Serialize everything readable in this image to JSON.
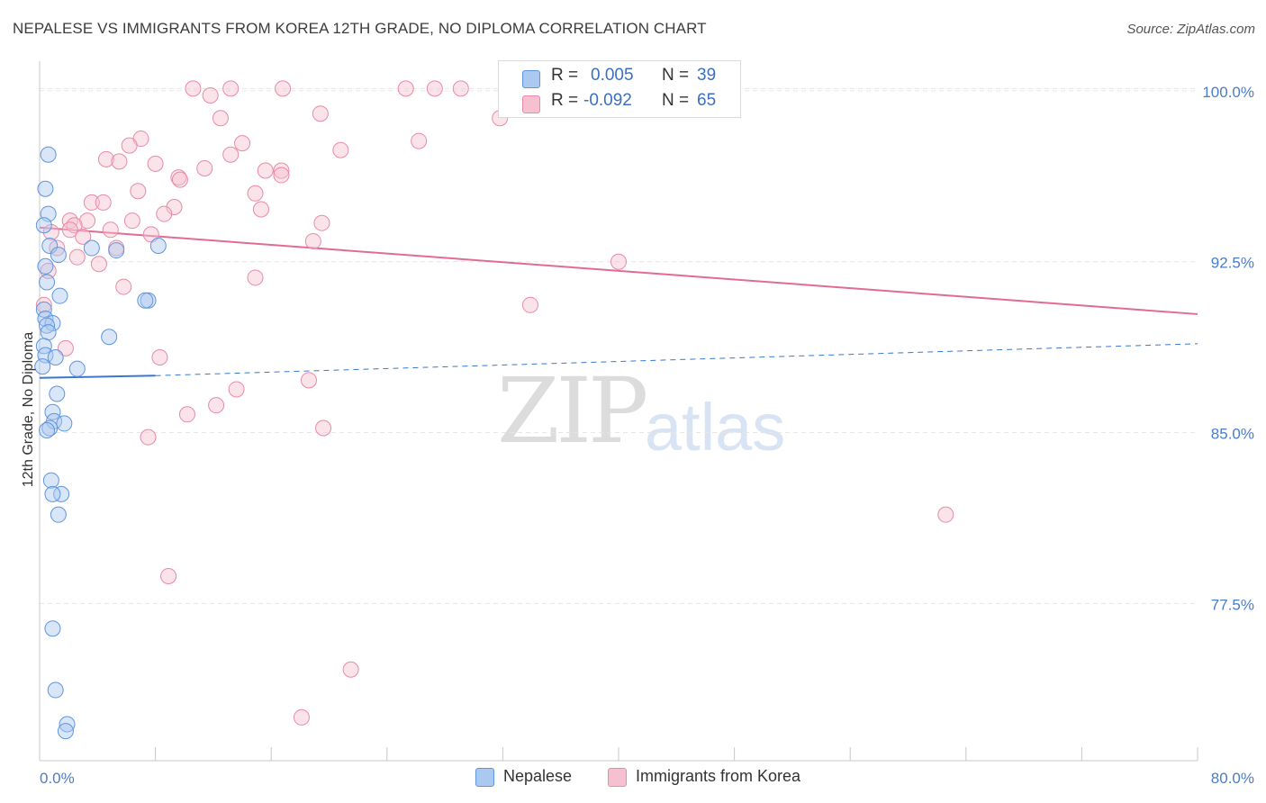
{
  "header": {
    "title": "NEPALESE VS IMMIGRANTS FROM KOREA 12TH GRADE, NO DIPLOMA CORRELATION CHART",
    "source": "Source: ZipAtlas.com"
  },
  "watermark": {
    "zip": "ZIP",
    "atlas": "atlas"
  },
  "colors": {
    "nepalese_fill": "#aac8f0",
    "nepalese_stroke": "#5f95dd",
    "nepalese_line": "#3a78d0",
    "korea_fill": "#f6c0d0",
    "korea_stroke": "#e88aa8",
    "korea_line": "#e36b93",
    "tick_text": "#4a7cc9",
    "grid": "#e6e6e6"
  },
  "legend": {
    "rows": [
      {
        "r_label": "R =",
        "r_value": "0.005",
        "n_label": "N =",
        "n_value": "39"
      },
      {
        "r_label": "R =",
        "r_value": "-0.092",
        "n_label": "N =",
        "n_value": "65"
      }
    ]
  },
  "bottom_legend": {
    "nepalese": "Nepalese",
    "korea": "Immigrants from Korea"
  },
  "chart_data": {
    "type": "scatter",
    "title": "NEPALESE VS IMMIGRANTS FROM KOREA 12TH GRADE, NO DIPLOMA CORRELATION CHART",
    "xlabel": "",
    "ylabel": "12th Grade, No Diploma",
    "xlim": [
      0,
      80
    ],
    "ylim": [
      70.6,
      101.3
    ],
    "x_tick_labels": [
      {
        "value": 0,
        "label": "0.0%"
      },
      {
        "value": 80,
        "label": "80.0%"
      }
    ],
    "x_minor_ticks": [
      0,
      8,
      16,
      24,
      32,
      40,
      48,
      56,
      64,
      72,
      80
    ],
    "y_ticks": [
      {
        "value": 100,
        "label": "100.0%"
      },
      {
        "value": 92.5,
        "label": "92.5%"
      },
      {
        "value": 85,
        "label": "85.0%"
      },
      {
        "value": 77.5,
        "label": "77.5%"
      }
    ],
    "grid": true,
    "series": [
      {
        "name": "Nepalese",
        "r": 0.005,
        "n": 39,
        "trend": {
          "solid": [
            [
              0,
              87.4
            ],
            [
              8,
              87.5
            ]
          ],
          "dashed": [
            [
              8,
              87.5
            ],
            [
              80,
              88.9
            ]
          ]
        },
        "points": [
          [
            0.6,
            97.2
          ],
          [
            0.4,
            95.7
          ],
          [
            0.6,
            94.6
          ],
          [
            0.3,
            94.1
          ],
          [
            0.7,
            93.2
          ],
          [
            1.3,
            92.8
          ],
          [
            0.4,
            92.3
          ],
          [
            0.5,
            91.6
          ],
          [
            1.4,
            91.0
          ],
          [
            7.5,
            90.8
          ],
          [
            7.3,
            90.8
          ],
          [
            0.3,
            90.4
          ],
          [
            0.4,
            90.0
          ],
          [
            0.9,
            89.8
          ],
          [
            0.5,
            89.7
          ],
          [
            0.6,
            89.4
          ],
          [
            4.8,
            89.2
          ],
          [
            0.3,
            88.8
          ],
          [
            0.4,
            88.4
          ],
          [
            1.1,
            88.3
          ],
          [
            0.2,
            87.9
          ],
          [
            2.6,
            87.8
          ],
          [
            1.2,
            86.7
          ],
          [
            0.9,
            85.9
          ],
          [
            1.0,
            85.5
          ],
          [
            1.7,
            85.4
          ],
          [
            0.7,
            85.2
          ],
          [
            0.5,
            85.1
          ],
          [
            0.8,
            82.9
          ],
          [
            1.5,
            82.3
          ],
          [
            0.9,
            82.3
          ],
          [
            1.3,
            81.4
          ],
          [
            0.9,
            76.4
          ],
          [
            1.1,
            73.7
          ],
          [
            1.9,
            72.2
          ],
          [
            1.8,
            71.9
          ],
          [
            8.2,
            93.2
          ],
          [
            5.3,
            93.0
          ],
          [
            3.6,
            93.1
          ]
        ]
      },
      {
        "name": "Immigrants from Korea",
        "r": -0.092,
        "n": 65,
        "trend": {
          "solid": [
            [
              0,
              94.0
            ],
            [
              80,
              90.2
            ]
          ]
        },
        "points": [
          [
            10.6,
            100.1
          ],
          [
            13.2,
            100.1
          ],
          [
            16.8,
            100.1
          ],
          [
            25.3,
            100.1
          ],
          [
            27.3,
            100.1
          ],
          [
            29.1,
            100.1
          ],
          [
            11.8,
            99.8
          ],
          [
            12.5,
            98.8
          ],
          [
            19.4,
            99.0
          ],
          [
            31.8,
            98.8
          ],
          [
            7.0,
            97.9
          ],
          [
            6.2,
            97.6
          ],
          [
            14.0,
            97.7
          ],
          [
            13.2,
            97.2
          ],
          [
            20.8,
            97.4
          ],
          [
            26.2,
            97.8
          ],
          [
            4.6,
            97.0
          ],
          [
            5.5,
            96.9
          ],
          [
            8.0,
            96.8
          ],
          [
            11.4,
            96.6
          ],
          [
            9.6,
            96.2
          ],
          [
            9.7,
            96.1
          ],
          [
            15.6,
            96.5
          ],
          [
            16.7,
            96.5
          ],
          [
            16.7,
            96.3
          ],
          [
            6.8,
            95.6
          ],
          [
            14.9,
            95.5
          ],
          [
            3.6,
            95.1
          ],
          [
            4.4,
            95.1
          ],
          [
            9.3,
            94.9
          ],
          [
            8.6,
            94.6
          ],
          [
            15.3,
            94.8
          ],
          [
            2.1,
            94.3
          ],
          [
            3.3,
            94.3
          ],
          [
            6.4,
            94.3
          ],
          [
            19.5,
            94.2
          ],
          [
            2.4,
            94.1
          ],
          [
            2.1,
            93.9
          ],
          [
            4.9,
            93.9
          ],
          [
            0.8,
            93.8
          ],
          [
            3.0,
            93.6
          ],
          [
            7.7,
            93.7
          ],
          [
            18.9,
            93.4
          ],
          [
            1.2,
            93.1
          ],
          [
            5.3,
            93.1
          ],
          [
            2.6,
            92.7
          ],
          [
            4.1,
            92.4
          ],
          [
            40.0,
            92.5
          ],
          [
            0.6,
            92.1
          ],
          [
            14.9,
            91.8
          ],
          [
            5.8,
            91.4
          ],
          [
            0.3,
            90.6
          ],
          [
            33.9,
            90.6
          ],
          [
            1.8,
            88.7
          ],
          [
            8.3,
            88.3
          ],
          [
            18.6,
            87.3
          ],
          [
            13.6,
            86.9
          ],
          [
            12.2,
            86.2
          ],
          [
            10.2,
            85.8
          ],
          [
            19.6,
            85.2
          ],
          [
            7.5,
            84.8
          ],
          [
            62.6,
            81.4
          ],
          [
            8.9,
            78.7
          ],
          [
            21.5,
            74.6
          ],
          [
            18.1,
            72.5
          ]
        ]
      }
    ]
  }
}
